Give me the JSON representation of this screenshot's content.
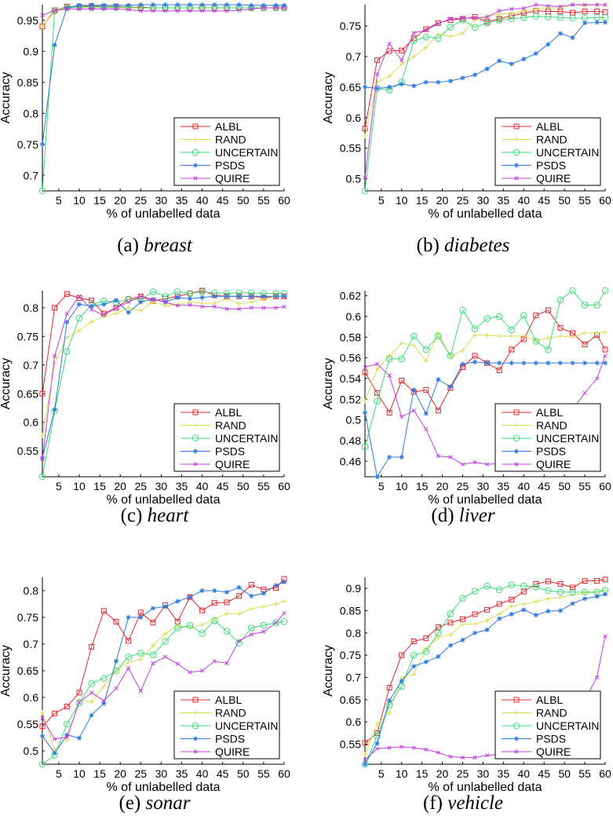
{
  "legend_entries": [
    "ALBL",
    "RAND",
    "UNCERTAIN",
    "PSDS",
    "QUIRE"
  ],
  "colors": {
    "ALBL": "#e3262b",
    "RAND": "#dcdc50",
    "UNCERTAIN": "#3ddc78",
    "PSDS": "#2a78e0",
    "QUIRE": "#c03ee0"
  },
  "chart_data": [
    {
      "type": "line",
      "caption_letter": "(a)",
      "caption_name": "breast",
      "xlabel": "% of unlabelled data",
      "ylabel": "Accuracy",
      "xlim": [
        1,
        60
      ],
      "ylim": [
        0.675,
        0.975
      ],
      "xticks": [
        5,
        10,
        15,
        20,
        25,
        30,
        35,
        40,
        45,
        50,
        55,
        60
      ],
      "yticks": [
        "0.7",
        "0.75",
        "0.8",
        "0.85",
        "0.9",
        "0.95"
      ],
      "x": [
        1,
        4,
        7,
        10,
        13,
        16,
        19,
        22,
        25,
        28,
        31,
        34,
        37,
        40,
        43,
        46,
        49,
        52,
        55,
        58,
        60
      ],
      "series": [
        {
          "name": "ALBL",
          "values": [
            0.94,
            0.966,
            0.972,
            0.972,
            0.973,
            0.972,
            0.972,
            0.971,
            0.971,
            0.97,
            0.97,
            0.97,
            0.97,
            0.97,
            0.97,
            0.97,
            0.97,
            0.97,
            0.97,
            0.97,
            0.97
          ]
        },
        {
          "name": "RAND",
          "values": [
            0.94,
            0.968,
            0.97,
            0.971,
            0.971,
            0.971,
            0.97,
            0.97,
            0.97,
            0.97,
            0.97,
            0.97,
            0.97,
            0.97,
            0.97,
            0.97,
            0.97,
            0.97,
            0.97,
            0.97,
            0.97
          ]
        },
        {
          "name": "UNCERTAIN",
          "values": [
            0.675,
            0.965,
            0.97,
            0.971,
            0.971,
            0.971,
            0.971,
            0.971,
            0.97,
            0.97,
            0.97,
            0.97,
            0.97,
            0.97,
            0.97,
            0.97,
            0.97,
            0.97,
            0.97,
            0.97,
            0.97
          ]
        },
        {
          "name": "PSDS",
          "values": [
            0.75,
            0.91,
            0.97,
            0.974,
            0.974,
            0.974,
            0.974,
            0.974,
            0.975,
            0.975,
            0.975,
            0.975,
            0.975,
            0.975,
            0.975,
            0.975,
            0.975,
            0.974,
            0.974,
            0.974,
            0.974
          ]
        },
        {
          "name": "QUIRE",
          "values": [
            0.958,
            0.966,
            0.968,
            0.968,
            0.968,
            0.968,
            0.968,
            0.967,
            0.965,
            0.965,
            0.965,
            0.965,
            0.965,
            0.965,
            0.965,
            0.965,
            0.966,
            0.968,
            0.97,
            0.97,
            0.97
          ]
        }
      ]
    },
    {
      "type": "line",
      "caption_letter": "(b)",
      "caption_name": "diabetes",
      "xlabel": "% of unlabelled data",
      "ylabel": "Accuracy",
      "xlim": [
        1,
        60
      ],
      "ylim": [
        0.48,
        0.785
      ],
      "xticks": [
        5,
        10,
        15,
        20,
        25,
        30,
        35,
        40,
        45,
        50,
        55,
        60
      ],
      "yticks": [
        "0.5",
        "0.55",
        "0.6",
        "0.65",
        "0.7",
        "0.75"
      ],
      "x": [
        1,
        4,
        7,
        10,
        13,
        16,
        19,
        22,
        25,
        28,
        31,
        34,
        37,
        40,
        43,
        46,
        49,
        52,
        55,
        58,
        60
      ],
      "series": [
        {
          "name": "ALBL",
          "values": [
            0.582,
            0.694,
            0.709,
            0.71,
            0.73,
            0.745,
            0.755,
            0.76,
            0.762,
            0.765,
            0.757,
            0.762,
            0.767,
            0.771,
            0.775,
            0.774,
            0.774,
            0.772,
            0.774,
            0.774,
            0.773
          ]
        },
        {
          "name": "RAND",
          "values": [
            0.57,
            0.658,
            0.668,
            0.688,
            0.7,
            0.715,
            0.737,
            0.733,
            0.738,
            0.76,
            0.765,
            0.77,
            0.77,
            0.775,
            0.778,
            0.78,
            0.78,
            0.785,
            0.783,
            0.785,
            0.785
          ]
        },
        {
          "name": "UNCERTAIN",
          "values": [
            0.48,
            0.648,
            0.645,
            0.658,
            0.726,
            0.732,
            0.73,
            0.748,
            0.76,
            0.748,
            0.755,
            0.76,
            0.762,
            0.764,
            0.766,
            0.765,
            0.764,
            0.763,
            0.763,
            0.764,
            0.764
          ]
        },
        {
          "name": "PSDS",
          "values": [
            0.65,
            0.648,
            0.65,
            0.655,
            0.652,
            0.658,
            0.658,
            0.66,
            0.665,
            0.67,
            0.68,
            0.693,
            0.688,
            0.696,
            0.705,
            0.72,
            0.738,
            0.731,
            0.755,
            0.756,
            0.756
          ]
        },
        {
          "name": "QUIRE",
          "values": [
            0.502,
            0.671,
            0.721,
            0.694,
            0.739,
            0.743,
            0.754,
            0.762,
            0.763,
            0.763,
            0.765,
            0.775,
            0.778,
            0.779,
            0.785,
            0.783,
            0.782,
            0.785,
            0.785,
            0.785,
            0.785
          ]
        }
      ]
    },
    {
      "type": "line",
      "caption_letter": "(c)",
      "caption_name": "heart",
      "xlabel": "% of unlabelled data",
      "ylabel": "Accuracy",
      "xlim": [
        1,
        60
      ],
      "ylim": [
        0.505,
        0.83
      ],
      "xticks": [
        5,
        10,
        15,
        20,
        25,
        30,
        35,
        40,
        45,
        50,
        55,
        60
      ],
      "yticks": [
        "0.55",
        "0.6",
        "0.65",
        "0.7",
        "0.75",
        "0.8"
      ],
      "x": [
        1,
        4,
        7,
        10,
        13,
        16,
        19,
        22,
        25,
        28,
        31,
        34,
        37,
        40,
        43,
        46,
        49,
        52,
        55,
        58,
        60
      ],
      "series": [
        {
          "name": "ALBL",
          "values": [
            0.65,
            0.8,
            0.824,
            0.817,
            0.813,
            0.79,
            0.8,
            0.815,
            0.82,
            0.812,
            0.816,
            0.82,
            0.825,
            0.83,
            0.822,
            0.82,
            0.82,
            0.82,
            0.818,
            0.82,
            0.82
          ]
        },
        {
          "name": "RAND",
          "values": [
            0.577,
            0.703,
            0.748,
            0.76,
            0.776,
            0.785,
            0.79,
            0.8,
            0.795,
            0.81,
            0.804,
            0.805,
            0.81,
            0.808,
            0.808,
            0.815,
            0.807,
            0.81,
            0.815,
            0.82,
            0.82
          ]
        },
        {
          "name": "UNCERTAIN",
          "values": [
            0.505,
            0.62,
            0.724,
            0.782,
            0.805,
            0.812,
            0.81,
            0.815,
            0.815,
            0.828,
            0.82,
            0.828,
            0.825,
            0.828,
            0.826,
            0.825,
            0.826,
            0.826,
            0.825,
            0.825,
            0.825
          ]
        },
        {
          "name": "PSDS",
          "values": [
            0.538,
            0.622,
            0.775,
            0.806,
            0.803,
            0.806,
            0.813,
            0.792,
            0.81,
            0.815,
            0.81,
            0.818,
            0.816,
            0.818,
            0.82,
            0.82,
            0.82,
            0.82,
            0.82,
            0.82,
            0.82
          ]
        },
        {
          "name": "QUIRE",
          "values": [
            0.536,
            0.716,
            0.79,
            0.82,
            0.797,
            0.787,
            0.8,
            0.81,
            0.82,
            0.815,
            0.81,
            0.804,
            0.805,
            0.802,
            0.802,
            0.798,
            0.798,
            0.8,
            0.8,
            0.8,
            0.802
          ]
        }
      ]
    },
    {
      "type": "line",
      "caption_letter": "(d)",
      "caption_name": "liver",
      "xlabel": "% of unlabelled data",
      "ylabel": "Accuracy",
      "xlim": [
        1,
        60
      ],
      "ylim": [
        0.445,
        0.625
      ],
      "xticks": [
        5,
        10,
        15,
        20,
        25,
        30,
        35,
        40,
        45,
        50,
        55,
        60
      ],
      "yticks": [
        "0.46",
        "0.48",
        "0.5",
        "0.52",
        "0.54",
        "0.56",
        "0.58",
        "0.6",
        "0.62"
      ],
      "x": [
        1,
        4,
        7,
        10,
        13,
        16,
        19,
        22,
        25,
        28,
        31,
        34,
        37,
        40,
        43,
        46,
        49,
        52,
        55,
        58,
        60
      ],
      "series": [
        {
          "name": "ALBL",
          "values": [
            0.546,
            0.526,
            0.507,
            0.538,
            0.527,
            0.529,
            0.509,
            0.531,
            0.551,
            0.562,
            0.555,
            0.548,
            0.568,
            0.578,
            0.601,
            0.606,
            0.589,
            0.584,
            0.573,
            0.582,
            0.568
          ]
        },
        {
          "name": "RAND",
          "values": [
            0.518,
            0.549,
            0.562,
            0.574,
            0.572,
            0.557,
            0.584,
            0.561,
            0.567,
            0.582,
            0.582,
            0.581,
            0.581,
            0.581,
            0.577,
            0.579,
            0.581,
            0.58,
            0.584,
            0.584,
            0.585
          ]
        },
        {
          "name": "UNCERTAIN",
          "values": [
            0.474,
            0.518,
            0.559,
            0.559,
            0.581,
            0.568,
            0.581,
            0.562,
            0.606,
            0.588,
            0.598,
            0.6,
            0.587,
            0.601,
            0.576,
            0.568,
            0.616,
            0.625,
            0.611,
            0.611,
            0.625
          ]
        },
        {
          "name": "PSDS",
          "values": [
            0.507,
            0.445,
            0.464,
            0.464,
            0.529,
            0.506,
            0.539,
            0.532,
            0.554,
            0.556,
            0.555,
            0.555,
            0.555,
            0.555,
            0.555,
            0.555,
            0.555,
            0.555,
            0.555,
            0.555,
            0.555
          ]
        },
        {
          "name": "QUIRE",
          "values": [
            0.551,
            0.554,
            0.543,
            0.503,
            0.509,
            0.491,
            0.465,
            0.464,
            0.457,
            0.459,
            0.457,
            0.458,
            0.46,
            0.462,
            0.465,
            0.47,
            0.49,
            0.51,
            0.526,
            0.54,
            0.562
          ]
        }
      ]
    },
    {
      "type": "line",
      "caption_letter": "(e)",
      "caption_name": "sonar",
      "xlabel": "% of unlabelled data",
      "ylabel": "Accuracy",
      "xlim": [
        1,
        60
      ],
      "ylim": [
        0.475,
        0.825
      ],
      "xticks": [
        5,
        10,
        15,
        20,
        25,
        30,
        35,
        40,
        45,
        50,
        55,
        60
      ],
      "yticks": [
        "0.5",
        "0.55",
        "0.6",
        "0.65",
        "0.7",
        "0.75",
        "0.8"
      ],
      "x": [
        1,
        4,
        7,
        10,
        13,
        16,
        19,
        22,
        25,
        28,
        31,
        34,
        37,
        40,
        43,
        46,
        49,
        52,
        55,
        58,
        60
      ],
      "series": [
        {
          "name": "ALBL",
          "values": [
            0.546,
            0.57,
            0.583,
            0.609,
            0.695,
            0.762,
            0.742,
            0.706,
            0.759,
            0.74,
            0.773,
            0.742,
            0.788,
            0.763,
            0.777,
            0.778,
            0.79,
            0.811,
            0.802,
            0.805,
            0.822
          ]
        },
        {
          "name": "RAND",
          "values": [
            0.572,
            0.502,
            0.521,
            0.595,
            0.592,
            0.621,
            0.65,
            0.666,
            0.671,
            0.697,
            0.72,
            0.735,
            0.73,
            0.736,
            0.747,
            0.757,
            0.757,
            0.766,
            0.77,
            0.775,
            0.78
          ]
        },
        {
          "name": "UNCERTAIN",
          "values": [
            0.475,
            0.492,
            0.55,
            0.59,
            0.626,
            0.636,
            0.65,
            0.676,
            0.683,
            0.68,
            0.705,
            0.73,
            0.735,
            0.72,
            0.744,
            0.724,
            0.702,
            0.73,
            0.735,
            0.74,
            0.742
          ]
        },
        {
          "name": "PSDS",
          "values": [
            0.528,
            0.496,
            0.53,
            0.524,
            0.567,
            0.589,
            0.668,
            0.75,
            0.75,
            0.767,
            0.77,
            0.78,
            0.788,
            0.8,
            0.8,
            0.797,
            0.806,
            0.79,
            0.795,
            0.81,
            0.816
          ]
        },
        {
          "name": "QUIRE",
          "values": [
            0.561,
            0.522,
            0.526,
            0.591,
            0.609,
            0.594,
            0.617,
            0.655,
            0.612,
            0.664,
            0.676,
            0.663,
            0.647,
            0.65,
            0.668,
            0.664,
            0.706,
            0.718,
            0.723,
            0.74,
            0.758
          ]
        }
      ]
    },
    {
      "type": "line",
      "caption_letter": "(f)",
      "caption_name": "vehicle",
      "xlabel": "% of unlabelled data",
      "ylabel": "Accuracy",
      "xlim": [
        1,
        60
      ],
      "ylim": [
        0.505,
        0.925
      ],
      "xticks": [
        5,
        10,
        15,
        20,
        25,
        30,
        35,
        40,
        45,
        50,
        55,
        60
      ],
      "yticks": [
        "0.55",
        "0.6",
        "0.65",
        "0.7",
        "0.75",
        "0.8",
        "0.85",
        "0.9"
      ],
      "x": [
        1,
        4,
        7,
        10,
        13,
        16,
        19,
        22,
        25,
        28,
        31,
        34,
        37,
        40,
        43,
        46,
        49,
        52,
        55,
        58,
        60
      ],
      "series": [
        {
          "name": "ALBL",
          "values": [
            0.553,
            0.575,
            0.677,
            0.75,
            0.781,
            0.788,
            0.813,
            0.823,
            0.831,
            0.842,
            0.852,
            0.865,
            0.875,
            0.893,
            0.91,
            0.916,
            0.91,
            0.902,
            0.917,
            0.917,
            0.92
          ]
        },
        {
          "name": "RAND",
          "values": [
            0.527,
            0.595,
            0.62,
            0.7,
            0.707,
            0.765,
            0.79,
            0.796,
            0.82,
            0.82,
            0.828,
            0.843,
            0.86,
            0.865,
            0.87,
            0.877,
            0.88,
            0.885,
            0.89,
            0.892,
            0.895
          ]
        },
        {
          "name": "UNCERTAIN",
          "values": [
            0.505,
            0.568,
            0.638,
            0.68,
            0.75,
            0.758,
            0.8,
            0.843,
            0.878,
            0.894,
            0.905,
            0.897,
            0.908,
            0.906,
            0.903,
            0.895,
            0.892,
            0.892,
            0.892,
            0.892,
            0.896
          ]
        },
        {
          "name": "PSDS",
          "values": [
            0.505,
            0.552,
            0.648,
            0.692,
            0.725,
            0.735,
            0.747,
            0.772,
            0.784,
            0.8,
            0.807,
            0.832,
            0.842,
            0.852,
            0.84,
            0.849,
            0.85,
            0.866,
            0.877,
            0.882,
            0.887
          ]
        },
        {
          "name": "QUIRE",
          "values": [
            0.515,
            0.54,
            0.542,
            0.544,
            0.542,
            0.538,
            0.531,
            0.522,
            0.52,
            0.52,
            0.525,
            0.527,
            0.528,
            0.528,
            0.53,
            0.535,
            0.55,
            0.6,
            0.65,
            0.7,
            0.793
          ]
        }
      ]
    }
  ]
}
